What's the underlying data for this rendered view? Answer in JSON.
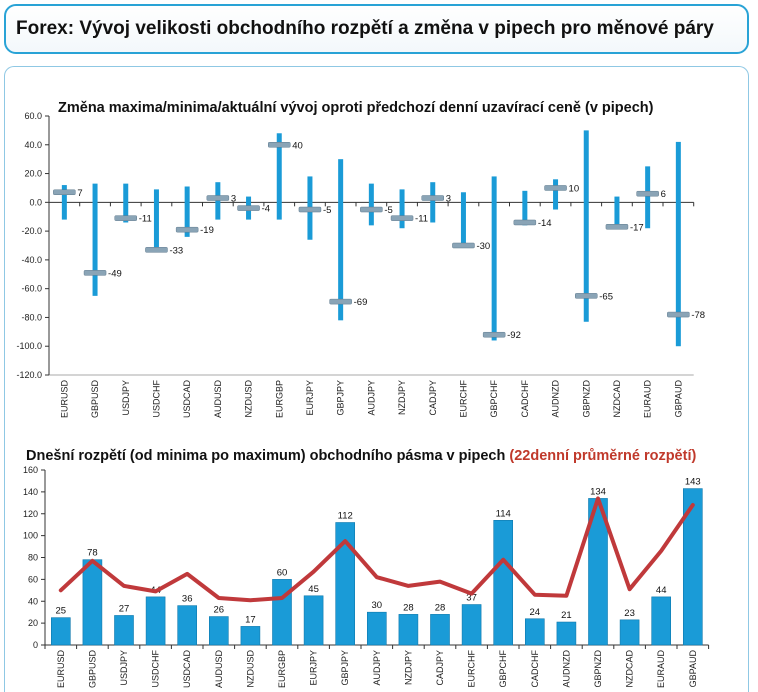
{
  "header": {
    "title": "Forex: Vývoj velikosti obchodního rozpětí a změna v pipech pro měnové páry"
  },
  "colors": {
    "bar": "#1a9bd7",
    "marker": "#8aa4b6",
    "line": "#c0393b",
    "header_border": "#29a3d6"
  },
  "chart_data": [
    {
      "type": "range-marker",
      "title": "Změna maxima/minima/aktuální vývoj oproti předchozí denní uzavírací ceně (v pipech)",
      "categories": [
        "EURUSD",
        "GBPUSD",
        "USDJPY",
        "USDCHF",
        "USDCAD",
        "AUDUSD",
        "NZDUSD",
        "EURGBP",
        "EURJPY",
        "GBPJPY",
        "AUDJPY",
        "NZDJPY",
        "CADJPY",
        "EURCHF",
        "GBPCHF",
        "CADCHF",
        "AUDNZD",
        "GBPNZD",
        "NZDCAD",
        "EURAUD",
        "GBPAUD"
      ],
      "high": [
        12,
        13,
        13,
        9,
        11,
        14,
        4,
        48,
        18,
        30,
        13,
        9,
        14,
        7,
        18,
        8,
        16,
        50,
        4,
        25,
        42
      ],
      "low": [
        -12,
        -65,
        -14,
        -33,
        -24,
        -12,
        -12,
        -12,
        -26,
        -82,
        -16,
        -18,
        -14,
        -30,
        -96,
        -16,
        -5,
        -83,
        -18,
        -18,
        -100
      ],
      "current": [
        7,
        -49,
        -11,
        -33,
        -19,
        3,
        -4,
        40,
        -5,
        -69,
        -5,
        -11,
        3,
        -30,
        -92,
        -14,
        10,
        -65,
        -17,
        6,
        -78
      ],
      "labels": [
        "7",
        "-49",
        "-11",
        "-33",
        "-19",
        "3",
        "-4",
        "40",
        "-5",
        "-69",
        "-5",
        "-11",
        "3",
        "-30",
        "-92",
        "-14",
        "10",
        "-65",
        "-17",
        "6",
        "-78"
      ],
      "ylim": [
        -120,
        60
      ],
      "yticks": [
        "60.0",
        "40.0",
        "20.0",
        "0.0",
        "-20.0",
        "-40.0",
        "-60.0",
        "-80.0",
        "-100.0",
        "-120.0"
      ],
      "yticks_values": [
        60,
        40,
        20,
        0,
        -20,
        -40,
        -60,
        -80,
        -100,
        -120
      ],
      "grid": false
    },
    {
      "type": "bar",
      "title": "Dnešní rozpětí (od minima po maximum) obchodního pásma v pipech",
      "title_extra": "(22denní průměrné rozpětí)",
      "categories": [
        "EURUSD",
        "GBPUSD",
        "USDJPY",
        "USDCHF",
        "USDCAD",
        "AUDUSD",
        "NZDUSD",
        "EURGBP",
        "EURJPY",
        "GBPJPY",
        "AUDJPY",
        "NZDJPY",
        "CADJPY",
        "EURCHF",
        "GBPCHF",
        "CADCHF",
        "AUDNZD",
        "GBPNZD",
        "NZDCAD",
        "EURAUD",
        "GBPAUD"
      ],
      "series": [
        {
          "values": [
            25,
            78,
            27,
            44,
            36,
            26,
            17,
            60,
            45,
            112,
            30,
            28,
            28,
            37,
            114,
            24,
            21,
            134,
            23,
            44,
            143
          ]
        },
        {
          "values": [
            50,
            77,
            54,
            49,
            65,
            43,
            41,
            43,
            67,
            95,
            62,
            54,
            58,
            47,
            78,
            46,
            45,
            134,
            51,
            86,
            128
          ]
        }
      ],
      "labels": [
        "25",
        "78",
        "27",
        "44",
        "36",
        "26",
        "17",
        "60",
        "45",
        "112",
        "30",
        "28",
        "28",
        "37",
        "114",
        "24",
        "21",
        "134",
        "23",
        "44",
        "143"
      ],
      "ylim": [
        0,
        160
      ],
      "yticks": [
        "160",
        "140",
        "120",
        "100",
        "80",
        "60",
        "40",
        "20",
        "0"
      ],
      "yticks_values": [
        160,
        140,
        120,
        100,
        80,
        60,
        40,
        20,
        0
      ],
      "grid": false
    }
  ]
}
